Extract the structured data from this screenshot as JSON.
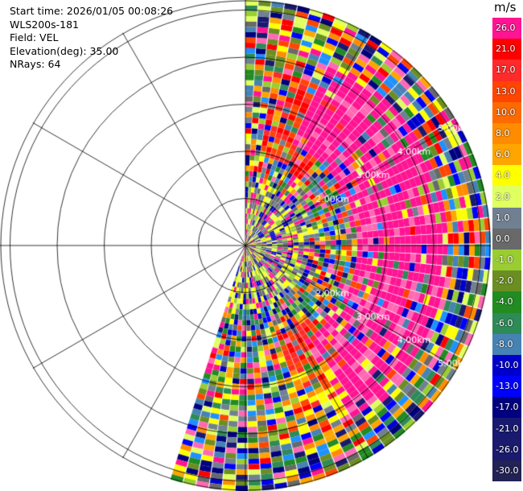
{
  "header": {
    "start_time": "Start time: 2026/01/05 00:08:26",
    "instrument": "WLS200s-181",
    "field": "Field: VEL",
    "elevation": "Elevation(deg): 35.00",
    "nrays": "NRays: 64"
  },
  "range_ring_labels": [
    "2.00km",
    "3.00km",
    "4.00km",
    "5.00km"
  ],
  "colorbar": {
    "unit": "m/s",
    "labels": [
      "26.0",
      "21.0",
      "17.0",
      "13.0",
      "10.0",
      "8.0",
      "6.0",
      "4.0",
      "2.0",
      "1.0",
      "0.0",
      "-1.0",
      "-2.0",
      "-4.0",
      "-6.0",
      "-8.0",
      "-10.0",
      "-13.0",
      "-17.0",
      "-21.0",
      "-26.0",
      "-30.0"
    ],
    "colors": [
      "#ff1493",
      "#ff0000",
      "#ff2a2a",
      "#ff4500",
      "#ff6a00",
      "#ff8c00",
      "#ffa500",
      "#ffff00",
      "#e0ff60",
      "#708090",
      "#696969",
      "#9acd32",
      "#6b8e23",
      "#228b22",
      "#2e8b57",
      "#4682b4",
      "#0000cd",
      "#0000ff",
      "#000080",
      "#191970",
      "#1a1a6e",
      "#222255"
    ]
  },
  "chart_data": {
    "type": "heatmap",
    "field": "VEL",
    "unit": "m/s",
    "elevation_deg": 35.0,
    "n_rays": 64,
    "range_rings_km": [
      1,
      2,
      3,
      4,
      5
    ],
    "value_range": [
      -30.0,
      26.0
    ]
  }
}
